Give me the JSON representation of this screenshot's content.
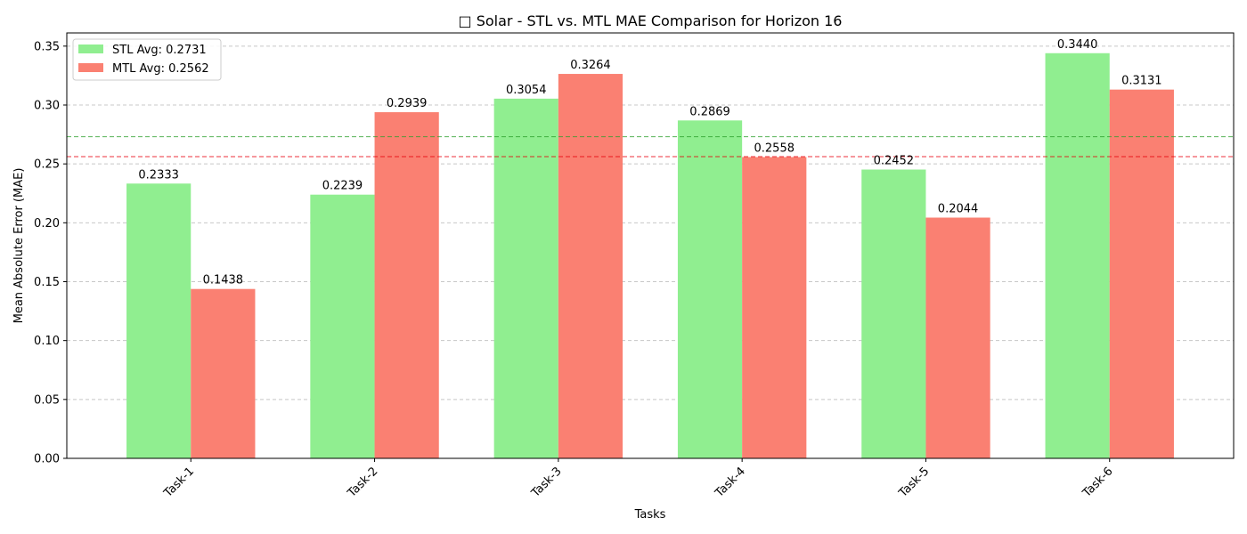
{
  "chart_data": {
    "type": "bar",
    "title": "□ Solar - STL vs. MTL MAE Comparison for Horizon 16",
    "xlabel": "Tasks",
    "ylabel": "Mean Absolute Error (MAE)",
    "categories": [
      "Task-1",
      "Task-2",
      "Task-3",
      "Task-4",
      "Task-5",
      "Task-6"
    ],
    "series": [
      {
        "name": "STL",
        "color": "#90ee90",
        "values": [
          0.2333,
          0.2239,
          0.3054,
          0.2869,
          0.2452,
          0.344
        ],
        "labels": [
          "0.2333",
          "0.2239",
          "0.3054",
          "0.2869",
          "0.2452",
          "0.3440"
        ]
      },
      {
        "name": "MTL",
        "color": "#fa8072",
        "values": [
          0.1438,
          0.2939,
          0.3264,
          0.2558,
          0.2044,
          0.3131
        ],
        "labels": [
          "0.1438",
          "0.2939",
          "0.3264",
          "0.2558",
          "0.2044",
          "0.3131"
        ]
      }
    ],
    "averages": [
      {
        "value": 0.2731,
        "color": "#2ca02c",
        "legend": "STL Avg: 0.2731"
      },
      {
        "value": 0.2562,
        "color": "#e8000b",
        "legend": "MTL Avg: 0.2562"
      }
    ],
    "ylim": [
      0,
      0.3612
    ],
    "yticks": [
      "0.00",
      "0.05",
      "0.10",
      "0.15",
      "0.20",
      "0.25",
      "0.30",
      "0.35"
    ],
    "grid": "y-dashed",
    "legend_position": "top-left"
  }
}
